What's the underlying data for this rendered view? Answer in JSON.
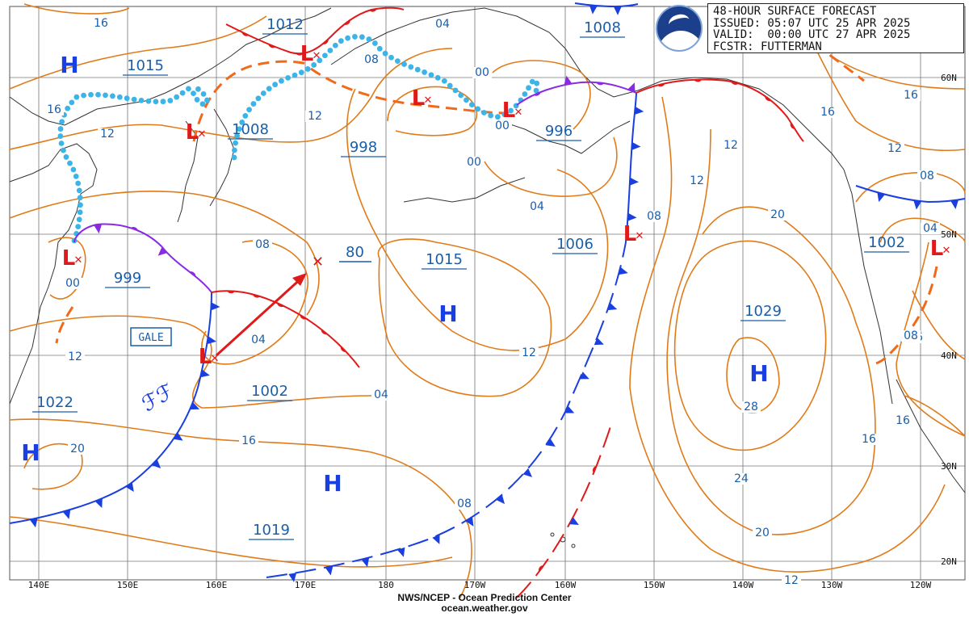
{
  "header": {
    "line1": "48-HOUR SURFACE FORECAST",
    "line2": "ISSUED: 05:07 UTC 25 APR 2025",
    "line3": "VALID:  00:00 UTC 27 APR 2025",
    "line4": "FCSTR: FUTTERMAN"
  },
  "logo": {
    "text": "NOAA"
  },
  "footer": {
    "line1": "NWS/NCEP - Ocean Prediction Center",
    "line2": "ocean.weather.gov"
  },
  "gale_label": "GALE",
  "storm_speed": "80",
  "longitude_labels": [
    "140E",
    "150E",
    "160E",
    "170E",
    "180",
    "170W",
    "160W",
    "150W",
    "140W",
    "130W",
    "120W"
  ],
  "latitude_labels": [
    "60N",
    "50N",
    "40N",
    "30N",
    "20N"
  ],
  "high_centers": [
    {
      "symbol": "H",
      "pressure": "1015"
    },
    {
      "symbol": "H",
      "pressure": "1015"
    },
    {
      "symbol": "H",
      "pressure": "1029"
    },
    {
      "symbol": "H",
      "pressure": "1022"
    },
    {
      "symbol": "H",
      "pressure": "1019"
    }
  ],
  "low_centers": [
    {
      "symbol": "L",
      "pressure": "1012"
    },
    {
      "symbol": "L",
      "pressure": "1008"
    },
    {
      "symbol": "L",
      "pressure": "998"
    },
    {
      "symbol": "L",
      "pressure": "996"
    },
    {
      "symbol": "L",
      "pressure": "1008"
    },
    {
      "symbol": "L",
      "pressure": "1006"
    },
    {
      "symbol": "L",
      "pressure": "999"
    },
    {
      "symbol": "L",
      "pressure": "1002"
    },
    {
      "symbol": "L",
      "pressure": "1002"
    }
  ],
  "isobar_labels": [
    "16",
    "16",
    "12",
    "08",
    "04",
    "00",
    "12",
    "00",
    "04",
    "08",
    "12",
    "16",
    "16",
    "12",
    "08",
    "04",
    "00",
    "12",
    "16",
    "20",
    "24",
    "28",
    "12",
    "08",
    "16",
    "20",
    "16",
    "20",
    "16",
    "12",
    "08",
    "04",
    "12",
    "04",
    "00",
    "08"
  ],
  "colors": {
    "isobar": "#e07b1a",
    "label": "#1a5ea8",
    "cold_front": "#1a3fe0",
    "warm_front": "#e01a1a",
    "occluded_front": "#8a2be2",
    "trough": "#f06a1a",
    "ridge_dotted": "#3cb4e8",
    "grid": "#777777",
    "coast": "#333333",
    "high_symbol": "#1a3fe0",
    "low_symbol": "#e01a1a"
  }
}
